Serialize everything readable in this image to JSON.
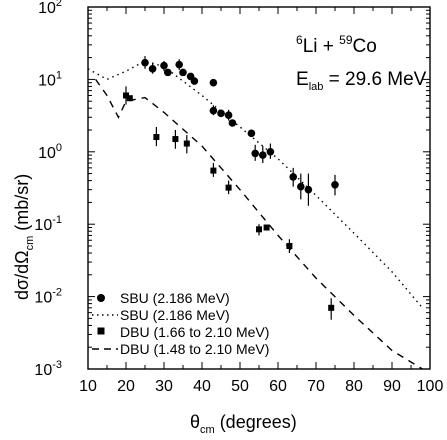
{
  "chart_data": {
    "type": "scatter",
    "annotation": {
      "reaction": {
        "pre_sup": "6",
        "a": "Li + ",
        "mid_sup": "59",
        "b": "Co"
      },
      "energy": {
        "e": "E",
        "sub": "lab",
        "rest": " = 29.6 MeV"
      }
    },
    "xaxis": {
      "label_main": "θ",
      "label_sub": "cm",
      "label_rest": " (degrees)",
      "range": [
        10,
        100
      ],
      "ticks": [
        "10",
        "20",
        "30",
        "40",
        "50",
        "60",
        "70",
        "80",
        "90",
        "100"
      ]
    },
    "yaxis": {
      "label_main": "dσ/dΩ",
      "label_sub": "cm",
      "label_rest": "  (mb/sr)",
      "scale": "log",
      "range": [
        0.001,
        100
      ],
      "ticks": [
        {
          "value": 100,
          "base": "10",
          "exp": "2"
        },
        {
          "value": 10,
          "base": "10",
          "exp": "1"
        },
        {
          "value": 1,
          "base": "10",
          "exp": "0"
        },
        {
          "value": 0.1,
          "base": "10",
          "exp": "-1"
        },
        {
          "value": 0.01,
          "base": "10",
          "exp": "-2"
        },
        {
          "value": 0.001,
          "base": "10",
          "exp": "-3"
        }
      ]
    },
    "legend": {
      "position": "bottom-left",
      "entries": [
        {
          "marker": "circle",
          "label": "SBU (2.186 MeV)"
        },
        {
          "marker": "dotted-line",
          "label": "SBU (2.186 MeV)"
        },
        {
          "marker": "square",
          "label": "DBU (1.66 to 2.10 MeV)"
        },
        {
          "marker": "dashed-line",
          "label": "DBU (1.48 to 2.10 MeV)"
        }
      ]
    },
    "series": [
      {
        "name": "SBU (2.186 MeV)",
        "kind": "points",
        "marker": "circle",
        "points": [
          {
            "x": 25,
            "y": 17,
            "elo": 14,
            "ehi": 21
          },
          {
            "x": 27,
            "y": 14,
            "elo": 12,
            "ehi": 17
          },
          {
            "x": 30,
            "y": 15.5,
            "elo": 13,
            "ehi": 18
          },
          {
            "x": 31,
            "y": 12.5
          },
          {
            "x": 34,
            "y": 16,
            "elo": 13.5,
            "ehi": 19
          },
          {
            "x": 35,
            "y": 12.5
          },
          {
            "x": 37,
            "y": 11
          },
          {
            "x": 38,
            "y": 9.5
          },
          {
            "x": 43,
            "y": 9
          },
          {
            "x": 43,
            "y": 3.7,
            "elo": 3.2,
            "ehi": 4.4
          },
          {
            "x": 45,
            "y": 3.4
          },
          {
            "x": 47,
            "y": 3.2,
            "elo": 2.7,
            "ehi": 3.8
          },
          {
            "x": 48,
            "y": 2.5
          },
          {
            "x": 53,
            "y": 1.8
          },
          {
            "x": 54,
            "y": 0.95,
            "elo": 0.75,
            "ehi": 1.25
          },
          {
            "x": 56,
            "y": 0.9,
            "elo": 0.7,
            "ehi": 1.2
          },
          {
            "x": 58,
            "y": 1.0,
            "elo": 0.8,
            "ehi": 1.3
          },
          {
            "x": 64,
            "y": 0.45,
            "elo": 0.33,
            "ehi": 0.6
          },
          {
            "x": 66,
            "y": 0.33,
            "elo": 0.22,
            "ehi": 0.5
          },
          {
            "x": 68,
            "y": 0.3,
            "elo": 0.18,
            "ehi": 0.5
          },
          {
            "x": 75,
            "y": 0.35,
            "elo": 0.25,
            "ehi": 0.48
          }
        ]
      },
      {
        "name": "SBU (2.186 MeV)",
        "kind": "line",
        "style": "dotted",
        "points": [
          [
            10,
            14
          ],
          [
            15,
            10
          ],
          [
            20,
            13
          ],
          [
            25,
            18
          ],
          [
            30,
            15
          ],
          [
            40,
            6
          ],
          [
            50,
            2.2
          ],
          [
            60,
            0.8
          ],
          [
            70,
            0.25
          ],
          [
            80,
            0.075
          ],
          [
            90,
            0.022
          ],
          [
            98,
            0.007
          ]
        ]
      },
      {
        "name": "DBU (1.66 to 2.10 MeV)",
        "kind": "points",
        "marker": "square",
        "points": [
          {
            "x": 20,
            "y": 6,
            "elo": 4.5,
            "ehi": 8
          },
          {
            "x": 21,
            "y": 5.5
          },
          {
            "x": 28,
            "y": 1.6,
            "elo": 1.2,
            "ehi": 2.2
          },
          {
            "x": 33,
            "y": 1.5,
            "elo": 1.1,
            "ehi": 2.0
          },
          {
            "x": 36,
            "y": 1.3,
            "elo": 0.95,
            "ehi": 1.7
          },
          {
            "x": 43,
            "y": 0.55,
            "elo": 0.45,
            "ehi": 0.7
          },
          {
            "x": 47,
            "y": 0.32,
            "elo": 0.26,
            "ehi": 0.4
          },
          {
            "x": 55,
            "y": 0.085,
            "elo": 0.07,
            "ehi": 0.1
          },
          {
            "x": 57,
            "y": 0.09
          },
          {
            "x": 63,
            "y": 0.05,
            "elo": 0.04,
            "ehi": 0.062
          },
          {
            "x": 74,
            "y": 0.007,
            "elo": 0.0048,
            "ehi": 0.0095
          }
        ]
      },
      {
        "name": "DBU (1.48 to 2.10 MeV)",
        "kind": "line",
        "style": "dashed",
        "points": [
          [
            12,
            10
          ],
          [
            15,
            6
          ],
          [
            18,
            3
          ],
          [
            20,
            5
          ],
          [
            25,
            5.6
          ],
          [
            30,
            3.5
          ],
          [
            40,
            1.2
          ],
          [
            50,
            0.3
          ],
          [
            60,
            0.07
          ],
          [
            70,
            0.018
          ],
          [
            80,
            0.0055
          ],
          [
            90,
            0.0018
          ],
          [
            98,
            0.001
          ]
        ]
      }
    ]
  }
}
